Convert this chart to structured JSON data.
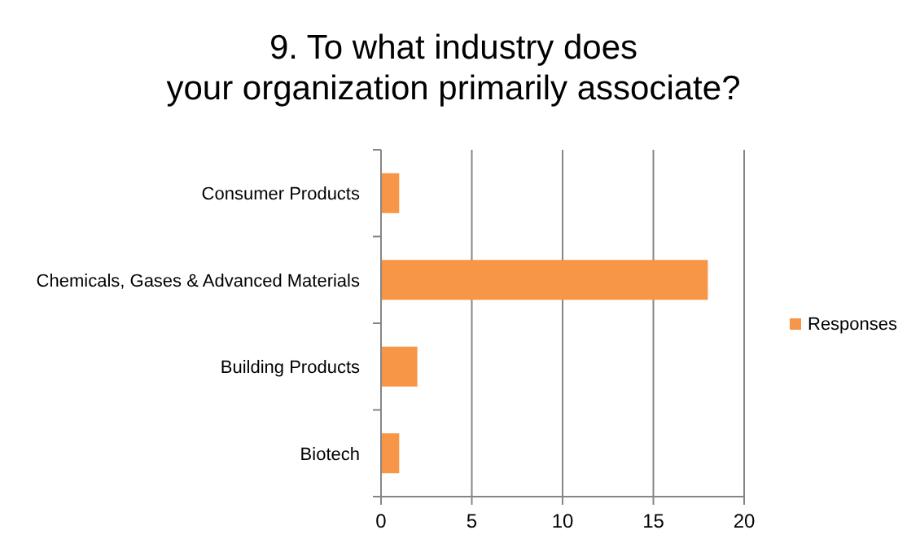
{
  "chart_data": {
    "type": "bar",
    "orientation": "horizontal",
    "title": "9. To what industry does your organization primarily associate?",
    "categories": [
      "Consumer Products",
      "Chemicals, Gases & Advanced Materials",
      "Building Products",
      "Biotech"
    ],
    "series": [
      {
        "name": "Responses",
        "color": "#f79646",
        "values": [
          1,
          18,
          2,
          1
        ]
      }
    ],
    "xlim": [
      0,
      20
    ],
    "xticks": [
      0,
      5,
      10,
      15,
      20
    ],
    "grid": "x",
    "legend": "right"
  }
}
